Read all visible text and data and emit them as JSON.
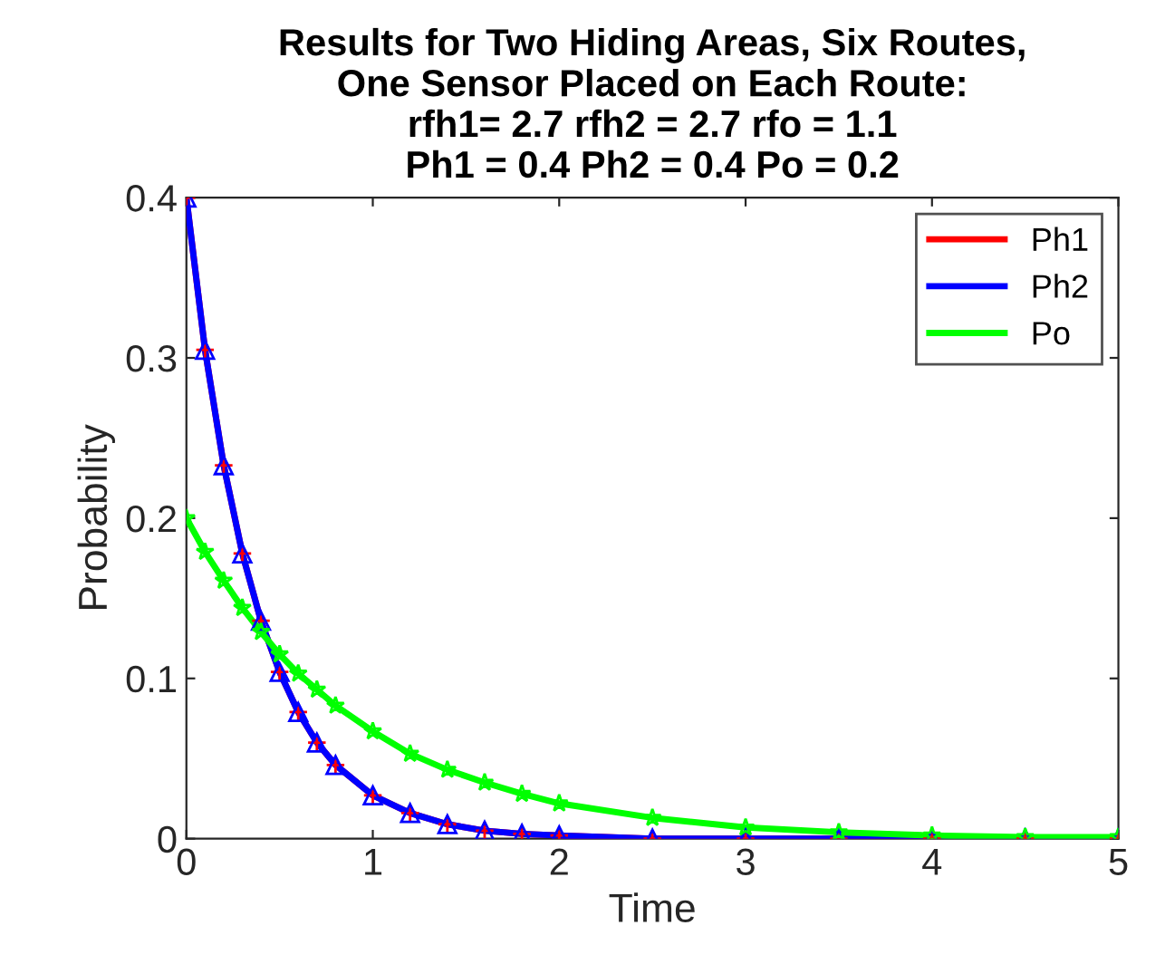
{
  "chart_data": {
    "type": "line",
    "title": "Results for Two Hiding Areas, Six Routes,\nOne Sensor Placed on Each Route:\nrfh1= 2.7 rfh2 = 2.7 rfo = 1.1\nPh1 = 0.4 Ph2 = 0.4 Po = 0.2",
    "xlabel": "Time",
    "ylabel": "Probability",
    "x": [
      0,
      0.1,
      0.2,
      0.3,
      0.4,
      0.5,
      0.6,
      0.7,
      0.8,
      1.0,
      1.2,
      1.4,
      1.6,
      1.8,
      2.0,
      2.5,
      3.0,
      3.5,
      4.0,
      4.5,
      5.0
    ],
    "series": [
      {
        "name": "Ph1",
        "color": "#ff0000",
        "marker": "cross",
        "values": [
          0.4,
          0.305,
          0.233,
          0.178,
          0.136,
          0.104,
          0.079,
          0.06,
          0.046,
          0.027,
          0.016,
          0.009,
          0.005,
          0.003,
          0.002,
          0.0,
          0.0,
          0.0,
          0.0,
          0.0,
          0.0
        ]
      },
      {
        "name": "Ph2",
        "color": "#0000ff",
        "marker": "triangle",
        "values": [
          0.4,
          0.305,
          0.233,
          0.178,
          0.136,
          0.104,
          0.079,
          0.06,
          0.046,
          0.027,
          0.016,
          0.009,
          0.005,
          0.003,
          0.002,
          0.0,
          0.0,
          0.0,
          0.0,
          0.0,
          0.0
        ]
      },
      {
        "name": "Po",
        "color": "#00ff00",
        "marker": "star",
        "values": [
          0.2,
          0.179,
          0.161,
          0.144,
          0.129,
          0.115,
          0.103,
          0.093,
          0.083,
          0.067,
          0.053,
          0.043,
          0.035,
          0.028,
          0.022,
          0.013,
          0.007,
          0.004,
          0.002,
          0.001,
          0.001
        ]
      }
    ],
    "xlim": [
      0,
      5
    ],
    "xticks": [
      0,
      1,
      2,
      3,
      4,
      5
    ],
    "ylim": [
      0,
      0.4
    ],
    "yticks": [
      0,
      0.1,
      0.2,
      0.3,
      0.4
    ],
    "grid": false,
    "legend": "top right",
    "line_style": "solid"
  }
}
